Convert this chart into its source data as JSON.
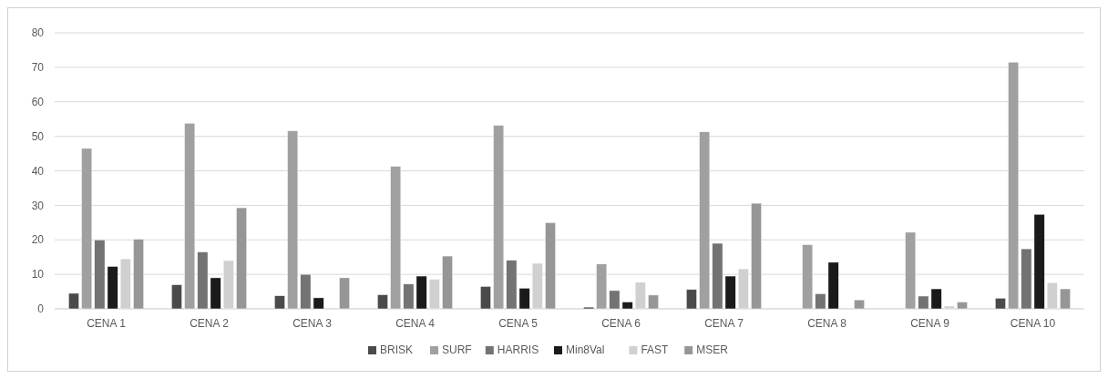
{
  "chart_data": {
    "type": "bar",
    "categories": [
      "CENA 1",
      "CENA 2",
      "CENA 3",
      "CENA 4",
      "CENA 5",
      "CENA 6",
      "CENA 7",
      "CENA 8",
      "CENA 9",
      "CENA 10"
    ],
    "series": [
      {
        "name": "BRISK",
        "color": "#4a4a4a",
        "values": [
          4.5,
          7,
          3.8,
          4.1,
          6.5,
          0.5,
          5.6,
          0,
          0,
          3.1
        ]
      },
      {
        "name": "SURF",
        "color": "#a0a0a0",
        "values": [
          46.5,
          53.8,
          51.6,
          41.3,
          53.2,
          13,
          51.3,
          18.6,
          22.2,
          71.5
        ]
      },
      {
        "name": "HARRIS",
        "color": "#737373",
        "values": [
          20,
          16.5,
          10,
          7.2,
          14.1,
          5.3,
          19,
          4.4,
          3.7,
          17.4
        ]
      },
      {
        "name": "Min8Val",
        "color": "#1a1a1a",
        "values": [
          12.3,
          9,
          3.2,
          9.5,
          6,
          2,
          9.5,
          13.5,
          5.8,
          27.4
        ]
      },
      {
        "name": "FAST",
        "color": "#d0d0d0",
        "values": [
          14.5,
          14,
          0,
          8.6,
          13.2,
          7.7,
          11.6,
          0,
          0.8,
          7.6
        ]
      },
      {
        "name": "MSER",
        "color": "#969696",
        "values": [
          20.2,
          29.3,
          9,
          15.3,
          25,
          4,
          30.6,
          2.6,
          2,
          5.8
        ]
      }
    ],
    "ylim": [
      0,
      80
    ],
    "yticks": [
      0,
      10,
      20,
      30,
      40,
      50,
      60,
      70,
      80
    ],
    "grid": "y",
    "legend": "bottom"
  }
}
